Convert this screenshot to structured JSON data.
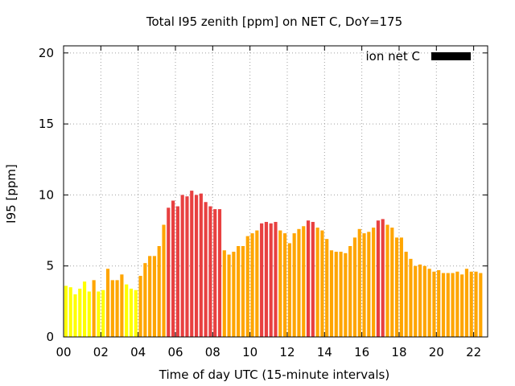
{
  "chart_data": {
    "type": "bar",
    "title": "Total I95 zenith [ppm] on NET C, DoY=175",
    "xlabel": "Time of day UTC (15-minute intervals)",
    "ylabel": "I95 [ppm]",
    "xlim": [
      0,
      22.75
    ],
    "ylim": [
      0,
      20.5
    ],
    "x_ticks": [
      0,
      2,
      4,
      6,
      8,
      10,
      12,
      14,
      16,
      18,
      20,
      22
    ],
    "x_tick_labels": [
      "00",
      "02",
      "04",
      "06",
      "08",
      "10",
      "12",
      "14",
      "16",
      "18",
      "20",
      "22"
    ],
    "y_ticks": [
      0,
      5,
      10,
      15,
      20
    ],
    "y_tick_labels": [
      "0",
      "5",
      "10",
      "15",
      "20"
    ],
    "grid": true,
    "legend_position": "top-right",
    "series": [
      {
        "name": "ion net C",
        "legend_color": "#000000",
        "interval_hours": 0.25,
        "start_hour": 0,
        "values": [
          3.6,
          3.5,
          3.0,
          3.4,
          3.9,
          3.2,
          4.0,
          3.2,
          3.3,
          4.8,
          4.0,
          4.0,
          4.4,
          3.7,
          3.4,
          3.3,
          4.3,
          5.2,
          5.7,
          5.7,
          6.4,
          7.9,
          9.1,
          9.6,
          9.2,
          10.0,
          9.9,
          10.3,
          10.0,
          10.1,
          9.5,
          9.2,
          9.0,
          9.0,
          6.1,
          5.8,
          6.0,
          6.4,
          6.4,
          7.1,
          7.3,
          7.5,
          8.0,
          8.1,
          8.0,
          8.1,
          7.5,
          7.3,
          6.6,
          7.3,
          7.6,
          7.8,
          8.2,
          8.1,
          7.7,
          7.5,
          6.9,
          6.1,
          6.0,
          6.0,
          5.9,
          6.4,
          7.0,
          7.6,
          7.3,
          7.4,
          7.7,
          8.2,
          8.3,
          7.9,
          7.7,
          7.0,
          7.0,
          6.0,
          5.5,
          5.0,
          5.1,
          5.0,
          4.8,
          4.6,
          4.7,
          4.5,
          4.5,
          4.5,
          4.6,
          4.4,
          4.8,
          4.6,
          4.6,
          4.5
        ]
      }
    ],
    "color_scale": [
      {
        "min": 0,
        "max": 4,
        "color": "#ffff00"
      },
      {
        "min": 4,
        "max": 8,
        "color": "#ffa500"
      },
      {
        "min": 8,
        "max": 100,
        "color": "#e84040"
      }
    ]
  }
}
